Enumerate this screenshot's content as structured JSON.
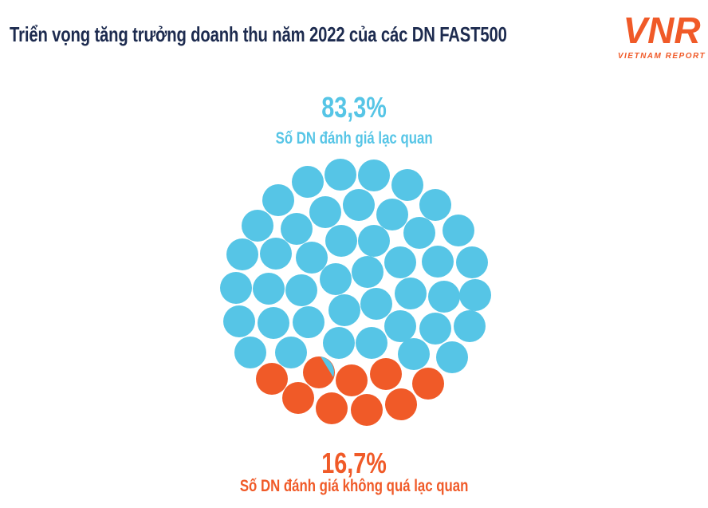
{
  "title": "Triển vọng tăng trưởng doanh thu năm 2022 của các DN FAST500",
  "logo": {
    "mark": "VNR",
    "text": "VIETNAM REPORT"
  },
  "colors": {
    "positive": "#56C5E6",
    "negative": "#F05A28",
    "title": "#1D2B4F"
  },
  "chart_data": {
    "type": "pie",
    "title": "Triển vọng tăng trưởng doanh thu năm 2022 của các DN FAST500",
    "series": [
      {
        "name": "Số DN đánh giá lạc quan",
        "value": 83.3,
        "label": "83,3%",
        "color": "#56C5E6"
      },
      {
        "name": "Số DN đánh giá không quá lạc quan",
        "value": 16.7,
        "label": "16,7%",
        "color": "#F05A28"
      }
    ]
  }
}
